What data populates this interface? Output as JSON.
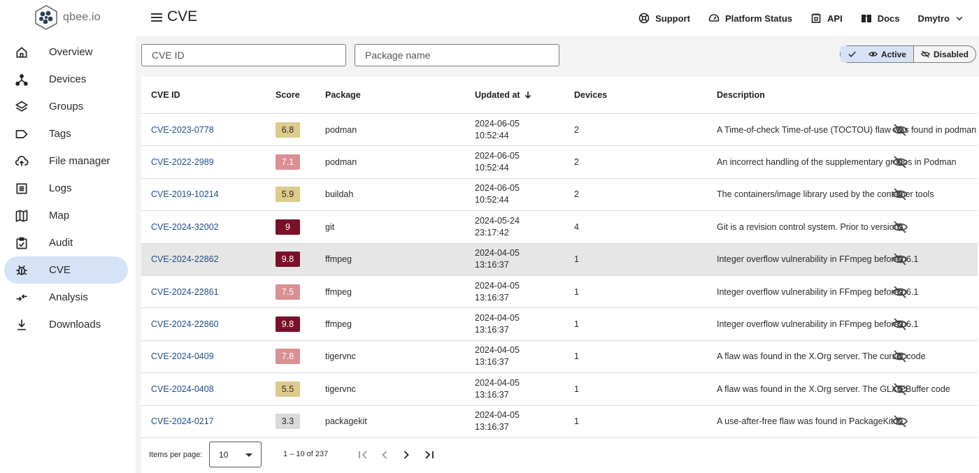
{
  "app": {
    "logo_text": "qbee.io",
    "page_title": "CVE"
  },
  "sidebar": {
    "items": [
      {
        "label": "Overview",
        "icon": "home-icon",
        "active": false
      },
      {
        "label": "Devices",
        "icon": "devices-icon",
        "active": false
      },
      {
        "label": "Groups",
        "icon": "layers-icon",
        "active": false
      },
      {
        "label": "Tags",
        "icon": "tag-icon",
        "active": false
      },
      {
        "label": "File manager",
        "icon": "cloud-upload-icon",
        "active": false
      },
      {
        "label": "Logs",
        "icon": "logs-icon",
        "active": false
      },
      {
        "label": "Map",
        "icon": "map-icon",
        "active": false
      },
      {
        "label": "Audit",
        "icon": "audit-icon",
        "active": false
      },
      {
        "label": "CVE",
        "icon": "bug-icon",
        "active": true
      },
      {
        "label": "Analysis",
        "icon": "analysis-icon",
        "active": false
      },
      {
        "label": "Downloads",
        "icon": "download-icon",
        "active": false
      }
    ]
  },
  "header": {
    "links": [
      {
        "label": "Support",
        "icon": "support-icon"
      },
      {
        "label": "Platform Status",
        "icon": "speedometer-icon"
      },
      {
        "label": "API",
        "icon": "api-icon"
      },
      {
        "label": "Docs",
        "icon": "book-icon"
      }
    ],
    "user": "Dmytro"
  },
  "filters": {
    "cve_placeholder": "CVE ID",
    "package_placeholder": "Package name",
    "toggle_active": "Active",
    "toggle_disabled": "Disabled"
  },
  "table": {
    "headers": {
      "cve_id": "CVE ID",
      "score": "Score",
      "package": "Package",
      "updated": "Updated at",
      "devices": "Devices",
      "description": "Description"
    },
    "rows": [
      {
        "cve_id": "CVE-2023-0778",
        "score": "6.8",
        "severity": "medium",
        "package": "podman",
        "date": "2024-06-05",
        "time": "10:52:44",
        "devices": "2",
        "description": "A Time-of-check Time-of-use (TOCTOU) flaw was found in podman",
        "selected": false
      },
      {
        "cve_id": "CVE-2022-2989",
        "score": "7.1",
        "severity": "high",
        "package": "podman",
        "date": "2024-06-05",
        "time": "10:52:44",
        "devices": "2",
        "description": "An incorrect handling of the supplementary groups in Podman",
        "selected": false
      },
      {
        "cve_id": "CVE-2019-10214",
        "score": "5.9",
        "severity": "medium",
        "package": "buildah",
        "date": "2024-06-05",
        "time": "10:52:44",
        "devices": "2",
        "description": "The containers/image library used by the container tools",
        "selected": false
      },
      {
        "cve_id": "CVE-2024-32002",
        "score": "9",
        "severity": "critical",
        "package": "git",
        "date": "2024-05-24",
        "time": "23:17:42",
        "devices": "4",
        "description": "Git is a revision control system. Prior to versions",
        "selected": false
      },
      {
        "cve_id": "CVE-2024-22862",
        "score": "9.8",
        "severity": "critical",
        "package": "ffmpeg",
        "date": "2024-04-05",
        "time": "13:16:37",
        "devices": "1",
        "description": "Integer overflow vulnerability in FFmpeg before n6.1",
        "selected": true
      },
      {
        "cve_id": "CVE-2024-22861",
        "score": "7.5",
        "severity": "high",
        "package": "ffmpeg",
        "date": "2024-04-05",
        "time": "13:16:37",
        "devices": "1",
        "description": "Integer overflow vulnerability in FFmpeg before n6.1",
        "selected": false
      },
      {
        "cve_id": "CVE-2024-22860",
        "score": "9.8",
        "severity": "critical",
        "package": "ffmpeg",
        "date": "2024-04-05",
        "time": "13:16:37",
        "devices": "1",
        "description": "Integer overflow vulnerability in FFmpeg before n6.1",
        "selected": false
      },
      {
        "cve_id": "CVE-2024-0409",
        "score": "7.8",
        "severity": "high",
        "package": "tigervnc",
        "date": "2024-04-05",
        "time": "13:16:37",
        "devices": "1",
        "description": "A flaw was found in the X.Org server. The cursor code",
        "selected": false
      },
      {
        "cve_id": "CVE-2024-0408",
        "score": "5.5",
        "severity": "medium",
        "package": "tigervnc",
        "date": "2024-04-05",
        "time": "13:16:37",
        "devices": "1",
        "description": "A flaw was found in the X.Org server. The GLX PBuffer code",
        "selected": false
      },
      {
        "cve_id": "CVE-2024-0217",
        "score": "3.3",
        "severity": "low",
        "package": "packagekit",
        "date": "2024-04-05",
        "time": "13:16:37",
        "devices": "1",
        "description": "A use-after-free flaw was found in PackageKitd",
        "selected": false
      }
    ]
  },
  "severity_colors": {
    "low": {
      "bg": "#d9d9d9",
      "fg": "#2a2a2a"
    },
    "medium": {
      "bg": "#dccb8a",
      "fg": "#2a2a2a"
    },
    "high": {
      "bg": "#d98f94",
      "fg": "#ffffff"
    },
    "critical": {
      "bg": "#7a1029",
      "fg": "#ffffff"
    }
  },
  "paginator": {
    "items_label": "Items per page:",
    "page_size": "10",
    "range": "1 – 10 of 237"
  }
}
